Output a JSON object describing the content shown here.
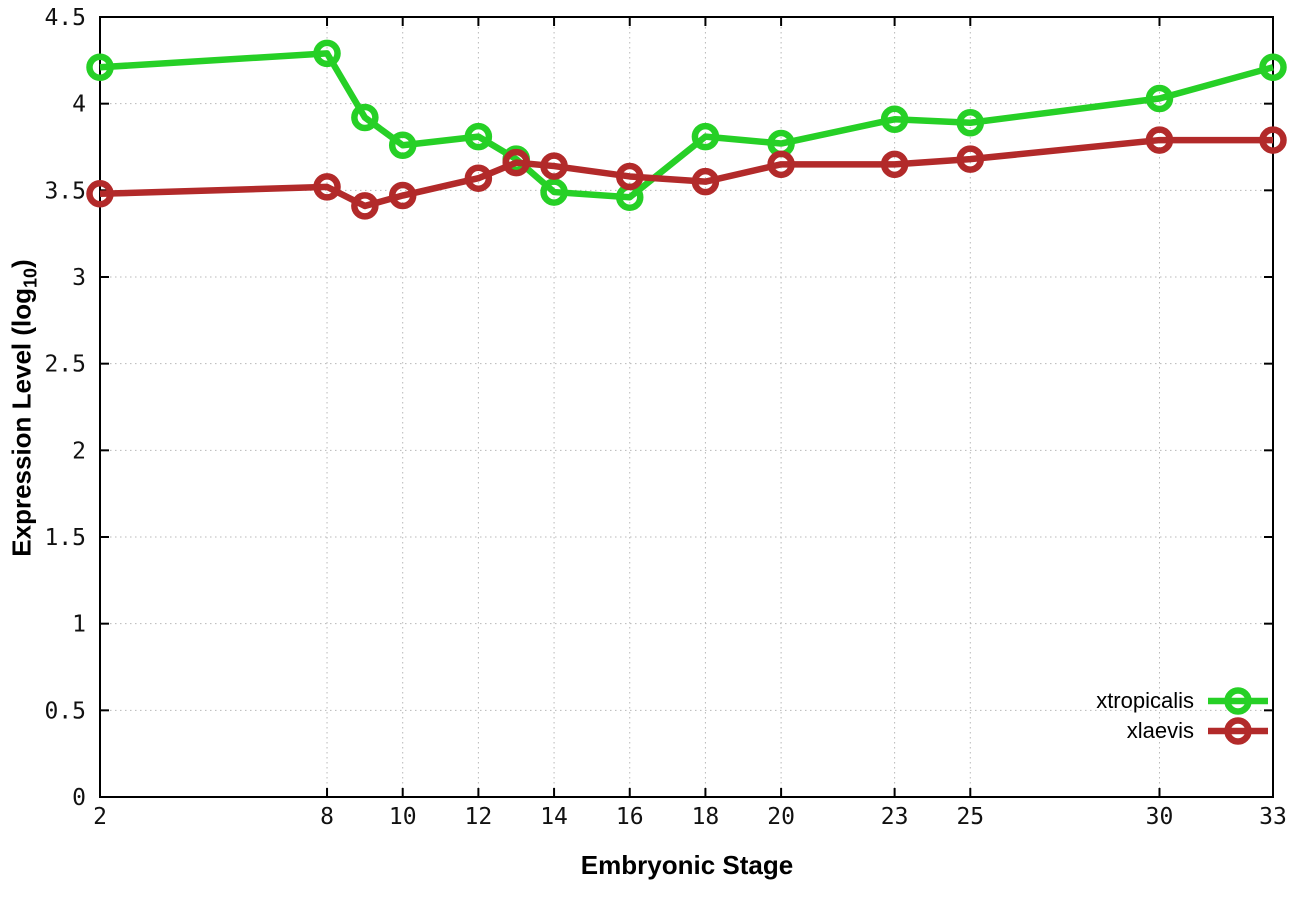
{
  "chart_data": {
    "type": "line",
    "title": "",
    "xlabel": "Embryonic Stage",
    "ylabel": "Expression Level (log10)",
    "ylabel_parts": {
      "main": "Expression Level (log",
      "sub": "10",
      "close": ")"
    },
    "xlim": [
      2,
      33
    ],
    "ylim": [
      0,
      4.5
    ],
    "grid": true,
    "legend_position": "bottom-right",
    "x_ticks": [
      2,
      8,
      10,
      12,
      14,
      16,
      18,
      20,
      23,
      25,
      30,
      33
    ],
    "y_ticks": [
      "0",
      "0.5",
      "1",
      "1.5",
      "2",
      "2.5",
      "3",
      "3.5",
      "4",
      "4.5"
    ],
    "x": [
      2,
      8,
      9,
      10,
      12,
      13,
      14,
      16,
      18,
      20,
      23,
      25,
      30,
      33
    ],
    "series": [
      {
        "name": "xtropicalis",
        "color": "#26d026",
        "values": [
          4.21,
          4.29,
          3.92,
          3.76,
          3.81,
          3.68,
          3.49,
          3.46,
          3.81,
          3.77,
          3.91,
          3.89,
          4.03,
          4.21
        ]
      },
      {
        "name": "xlaevis",
        "color": "#b22a2a",
        "values": [
          3.48,
          3.52,
          3.41,
          3.47,
          3.57,
          3.66,
          3.64,
          3.58,
          3.55,
          3.65,
          3.65,
          3.68,
          3.79,
          3.79
        ]
      }
    ]
  }
}
